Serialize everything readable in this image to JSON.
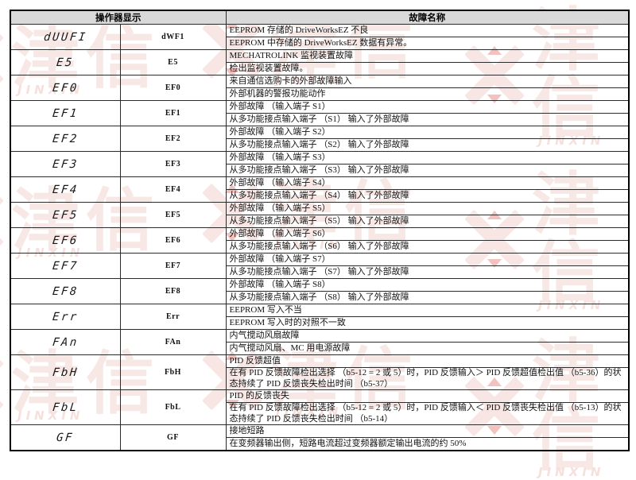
{
  "watermark": {
    "chars": "津信",
    "latin": "JINXIN",
    "light_color": "#f2d7d1",
    "accent_color": "#dd5348"
  },
  "table": {
    "headers": [
      "操作器显示",
      "故障名称"
    ],
    "header_bg": "#d9d9d9",
    "border_color": "#2b2b2b",
    "rows": [
      {
        "display": "dUUFI",
        "code": "dWF1",
        "name": "EEPROM 存储的 DriveWorksEZ 不良",
        "description": "EEPROM 中存储的 DriveWorksEZ 数据有异常。"
      },
      {
        "display": "E5",
        "code": "E5",
        "name": "MECHATROLINK 监视装置故障",
        "description": "检出监视装置故障。"
      },
      {
        "display": "EF0",
        "code": "EF0",
        "name": "来自通信选购卡的外部故障输入",
        "description": "外部机器的警报功能动作"
      },
      {
        "display": "EF1",
        "code": "EF1",
        "name": "外部故障 （输入端子 S1）",
        "description": "从多功能接点输入端子 （S1） 输入了外部故障"
      },
      {
        "display": "EF2",
        "code": "EF2",
        "name": "外部故障 （输入端子 S2）",
        "description": "从多功能接点输入端子 （S2） 输入了外部故障"
      },
      {
        "display": "EF3",
        "code": "EF3",
        "name": "外部故障 （输入端子 S3）",
        "description": "从多功能接点输入端子 （S3） 输入了外部故障"
      },
      {
        "display": "EF4",
        "code": "EF4",
        "name": "外部故障 （输入端子 S4）",
        "description": "从多功能接点输入端子 （S4） 输入了外部故障"
      },
      {
        "display": "EF5",
        "code": "EF5",
        "name": "外部故障 （输入端子 S5）",
        "description": "从多功能接点输入端子 （S5） 输入了外部故障"
      },
      {
        "display": "EF6",
        "code": "EF6",
        "name": "外部故障 （输入端子 S6）",
        "description": "从多功能接点输入端子 （S6） 输入了外部故障"
      },
      {
        "display": "EF7",
        "code": "EF7",
        "name": "外部故障 （输入端子 S7）",
        "description": "从多功能接点输入端子 （S7） 输入了外部故障"
      },
      {
        "display": "EF8",
        "code": "EF8",
        "name": "外部故障 （输入端子 S8）",
        "description": "从多功能接点输入端子 （S8） 输入了外部故障"
      },
      {
        "display": "Err",
        "code": "Err",
        "name": "EEPROM 写入不当",
        "description": "EEPROM 写入时的对照不一致"
      },
      {
        "display": "FAn",
        "code": "FAn",
        "name": "内气搅动风扇故障",
        "description": "内气搅动风扇、MC 用电源故障"
      },
      {
        "display": "FbH",
        "code": "FbH",
        "name": "PID 反馈超值",
        "description": "在有 PID 反馈故障检出选择 （b5-12 = 2 或 5）时，PID 反馈输入＞ PID 反馈超值检出值 （b5-36）的状态持续了 PID 反馈丧失检出时间 （b5-37）"
      },
      {
        "display": "FbL",
        "code": "FbL",
        "name": "PID 的反馈丧失",
        "description": "在有 PID 反馈故障检出选择 （b5-12 = 2 或 5）时，PID 反馈输入＜ PID 反馈丧失检出值 （b5-13）的状态持续了 PID 反馈丧失检出时间 （b5-14）"
      },
      {
        "display": "GF",
        "code": "GF",
        "name": "接地短路",
        "description": "在变频器输出侧，短路电流超过变频器额定输出电流的约 50%"
      }
    ]
  }
}
